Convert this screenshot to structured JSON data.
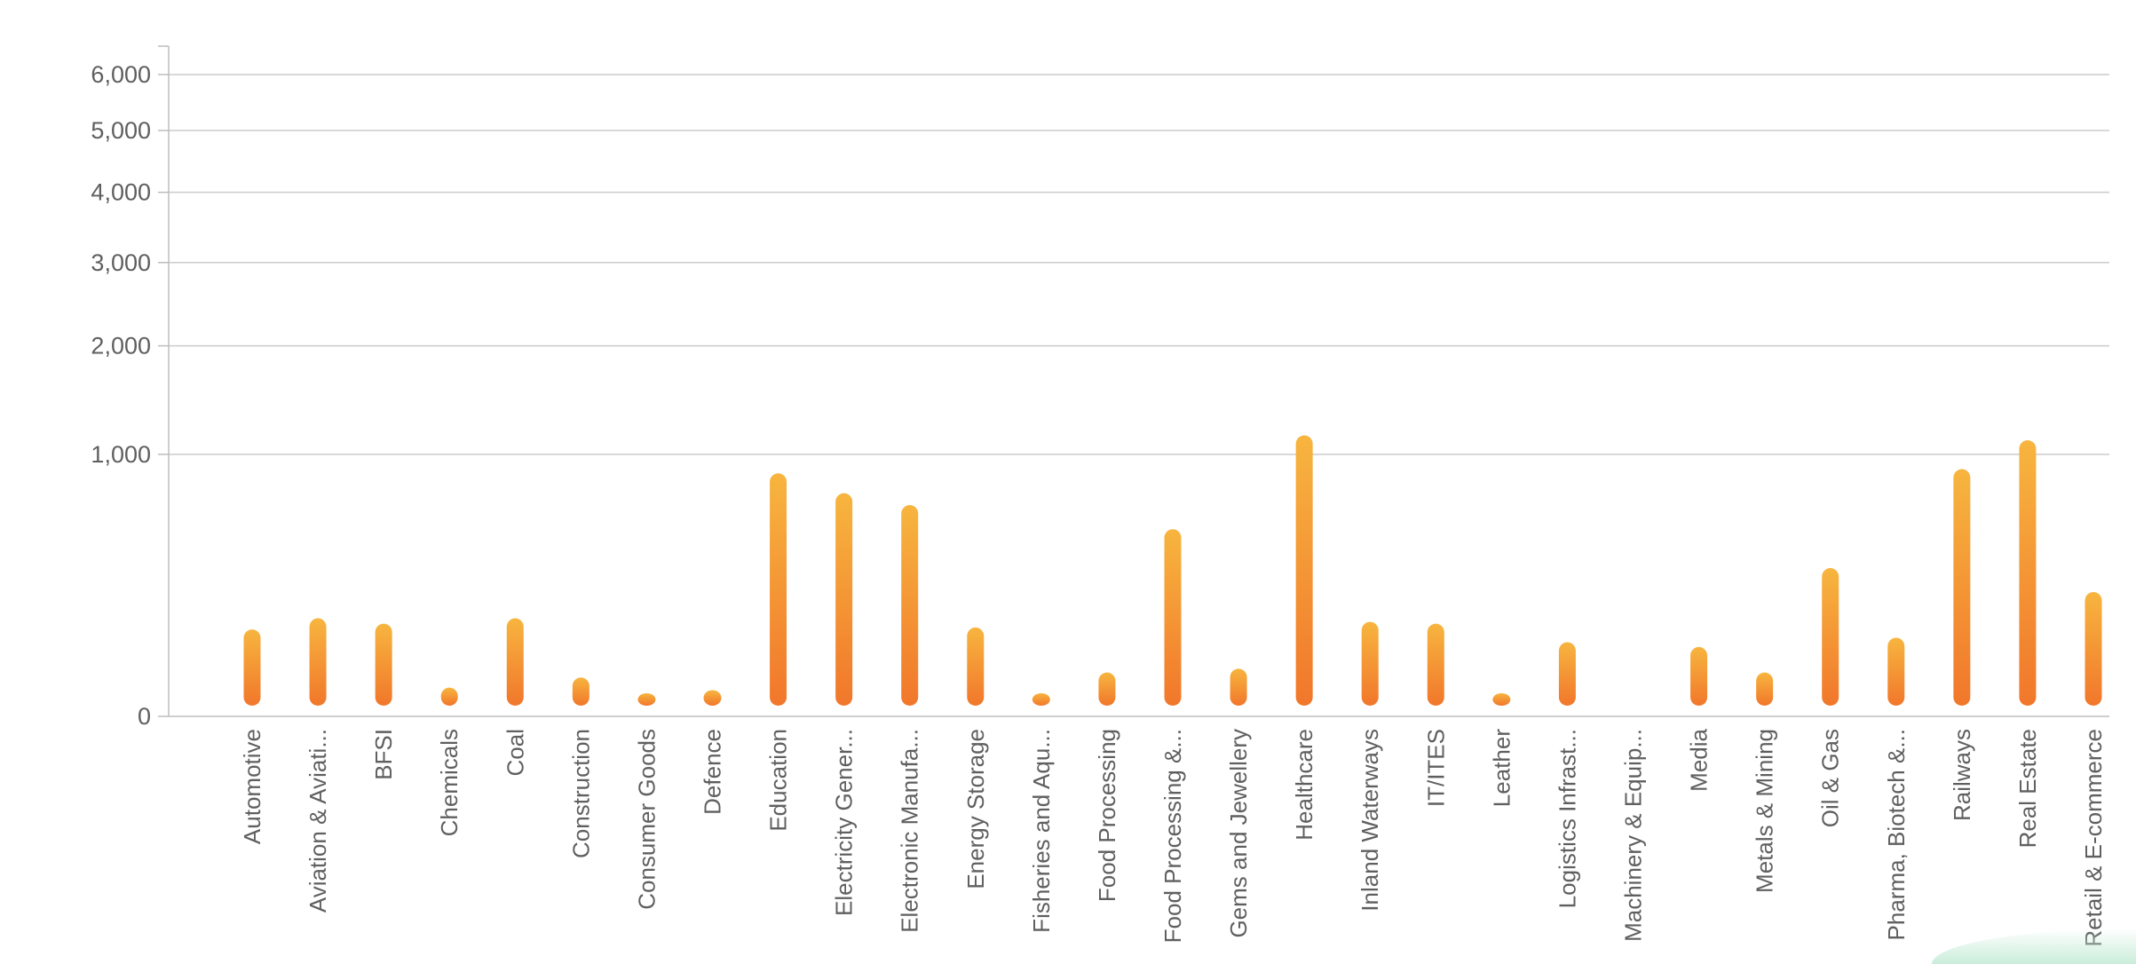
{
  "chart_data": {
    "type": "bar",
    "title": "",
    "xlabel": "",
    "ylabel": "",
    "y_scale": "sqrt",
    "ylim": [
      0,
      6000
    ],
    "y_ticks": [
      0,
      1000,
      2000,
      3000,
      4000,
      5000,
      6000
    ],
    "y_tick_labels": [
      "0",
      "1,000",
      "2,000",
      "3,000",
      "4,000",
      "5,000",
      "6,000"
    ],
    "grid": true,
    "legend": "none",
    "bar_gradient": {
      "top": "#F7B53F",
      "bottom": "#F1772B"
    },
    "categories": [
      "Automotive",
      "Aviation & Aviati...",
      "BFSI",
      "Chemicals",
      "Coal",
      "Construction",
      "Consumer Goods",
      "Defence",
      "Education",
      "Electricity Gener...",
      "Electronic Manufa...",
      "Energy Storage",
      "Fisheries and Aqu...",
      "Food Processing",
      "Food Processing &...",
      "Gems and Jewellery",
      "Healthcare",
      "Inland Waterways",
      "IT/ITES",
      "Leather",
      "Logistics Infrast...",
      "Machinery & Equip...",
      "Media",
      "Metals & Mining",
      "Oil & Gas",
      "Pharma, Biotech &...",
      "Railways",
      "Real Estate",
      "Retail & E-commerce"
    ],
    "values": [
      110,
      140,
      125,
      12,
      140,
      22,
      2,
      10,
      860,
      725,
      650,
      115,
      4,
      28,
      510,
      33,
      1150,
      130,
      125,
      4,
      80,
      0,
      70,
      28,
      320,
      90,
      890,
      1110,
      225
    ]
  }
}
